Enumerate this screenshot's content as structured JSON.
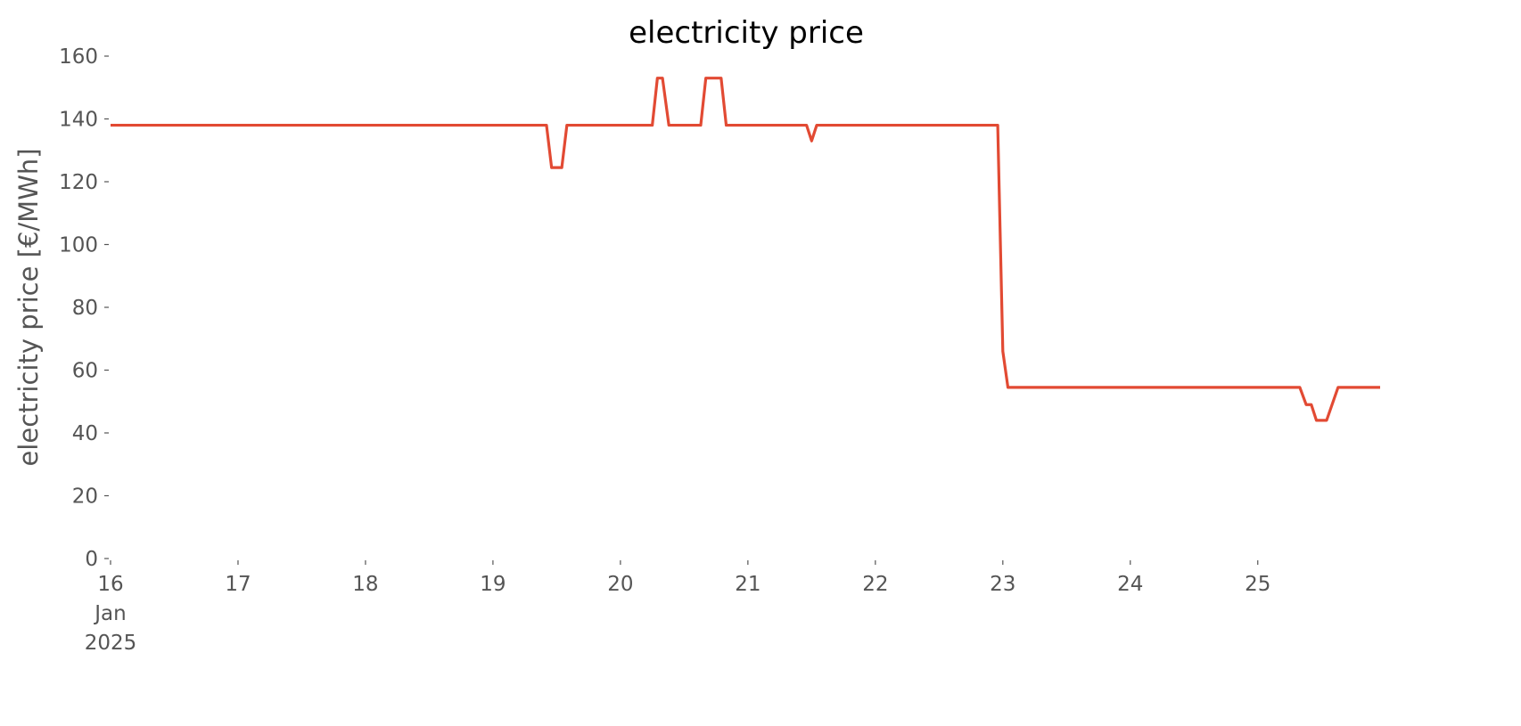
{
  "chart_data": {
    "type": "line",
    "title": "electricity price",
    "y_label": "electricity price [€/MWh]",
    "x": [
      16.0,
      19.42,
      19.46,
      19.54,
      19.58,
      20.25,
      20.29,
      20.33,
      20.38,
      20.63,
      20.67,
      20.79,
      20.83,
      21.46,
      21.5,
      21.54,
      22.96,
      23.0,
      23.04,
      25.33,
      25.38,
      25.42,
      25.46,
      25.54,
      25.63,
      25.96
    ],
    "series": [
      {
        "name": "electricity price",
        "color": "#E24A33",
        "values": [
          138,
          138,
          124.5,
          124.5,
          138,
          138,
          153,
          153,
          138,
          138,
          153,
          153,
          138,
          138,
          133,
          138,
          138,
          66,
          54.5,
          54.5,
          49,
          49,
          44,
          44,
          54.5,
          54.5
        ]
      }
    ],
    "xlim": [
      16,
      25.96
    ],
    "xticks": [
      {
        "value": 16,
        "label": "16\nJan\n2025"
      },
      17,
      18,
      19,
      20,
      21,
      22,
      23,
      24,
      25
    ],
    "ylim": [
      0,
      160
    ],
    "yticks": [
      0,
      20,
      40,
      60,
      80,
      100,
      120,
      140,
      160
    ],
    "grid": false
  }
}
